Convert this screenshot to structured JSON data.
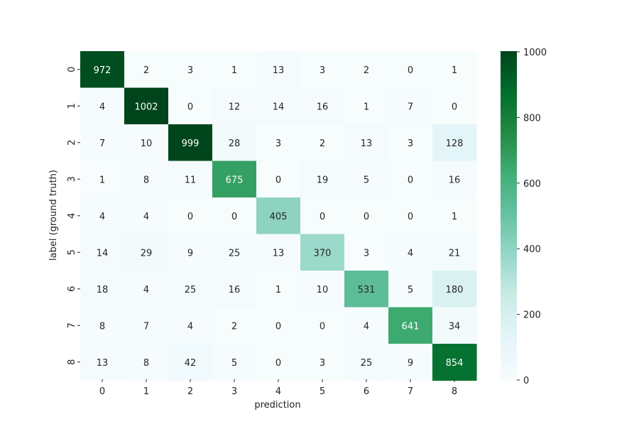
{
  "chart_data": {
    "type": "heatmap",
    "title": "",
    "xlabel": "prediction",
    "ylabel": "label (ground truth)",
    "x_categories": [
      "0",
      "1",
      "2",
      "3",
      "4",
      "5",
      "6",
      "7",
      "8"
    ],
    "y_categories": [
      "0",
      "1",
      "2",
      "3",
      "4",
      "5",
      "6",
      "7",
      "8"
    ],
    "values": [
      [
        972,
        2,
        3,
        1,
        13,
        3,
        2,
        0,
        1
      ],
      [
        4,
        1002,
        0,
        12,
        14,
        16,
        1,
        7,
        0
      ],
      [
        7,
        10,
        999,
        28,
        3,
        2,
        13,
        3,
        128
      ],
      [
        1,
        8,
        11,
        675,
        0,
        19,
        5,
        0,
        16
      ],
      [
        4,
        4,
        0,
        0,
        405,
        0,
        0,
        0,
        1
      ],
      [
        14,
        29,
        9,
        25,
        13,
        370,
        3,
        4,
        21
      ],
      [
        18,
        4,
        25,
        16,
        1,
        10,
        531,
        5,
        180
      ],
      [
        8,
        7,
        4,
        2,
        0,
        0,
        4,
        641,
        34
      ],
      [
        13,
        8,
        42,
        5,
        0,
        3,
        25,
        9,
        854
      ]
    ],
    "colorbar": {
      "colormap": "BuGn",
      "vmin": 0,
      "vmax": 1002,
      "ticks": [
        0,
        200,
        400,
        600,
        800,
        1000
      ],
      "tick_labels": [
        "0",
        "200",
        "400",
        "600",
        "800",
        "1000"
      ]
    },
    "annotated": true,
    "grid": false
  }
}
